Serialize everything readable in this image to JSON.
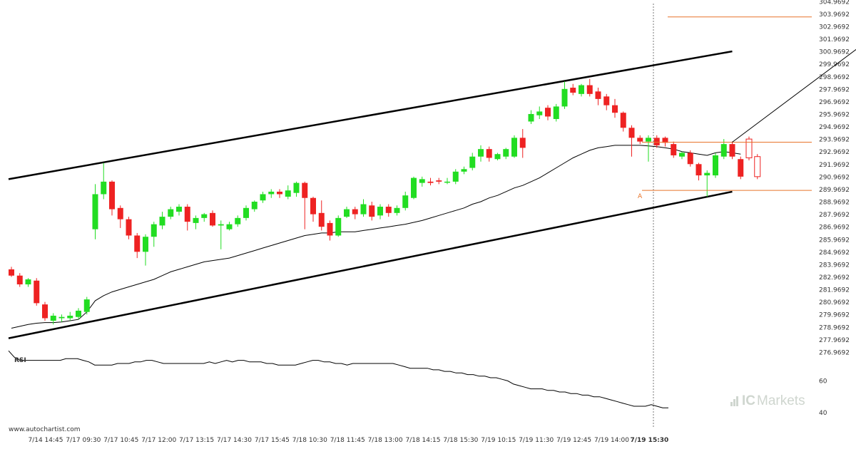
{
  "watermark": "www.autochartist.com",
  "brand": {
    "prefix": "IC",
    "name": "Markets",
    "color": "#cfd6cf"
  },
  "chart_data": {
    "type": "candlestick",
    "y_axis": {
      "range": [
        276.2,
        305.1
      ],
      "ticks": [
        "304.9692",
        "303.9692",
        "302.9692",
        "301.9692",
        "300.9692",
        "299.9692",
        "298.9692",
        "297.9692",
        "296.9692",
        "295.9692",
        "294.9692",
        "293.9692",
        "292.9692",
        "291.9692",
        "290.9692",
        "289.9692",
        "288.9692",
        "287.9692",
        "286.9692",
        "285.9692",
        "284.9692",
        "283.9692",
        "282.9692",
        "281.9692",
        "280.9692",
        "279.9692",
        "278.9692",
        "277.9692",
        "276.9692"
      ]
    },
    "x_axis": {
      "labels": [
        "7/14 14:45",
        "7/17 09:30",
        "7/17 10:45",
        "7/17 12:00",
        "7/17 13:15",
        "7/17 14:30",
        "7/17 15:45",
        "7/18 10:30",
        "7/18 11:45",
        "7/18 13:00",
        "7/18 14:15",
        "7/18 15:30",
        "7/19 10:15",
        "7/19 11:30",
        "7/19 12:45",
        "7/19 14:00",
        "7/19 15:30"
      ],
      "highlight": "7/19 15:30"
    },
    "colors": {
      "up": "#22dd22",
      "down": "#ee2222",
      "ma": "#000000",
      "channel": "#000000",
      "level": "#e8742a",
      "forecast": "#e8742a"
    },
    "candles": [
      [
        283.6,
        283.1,
        283.8,
        283.0
      ],
      [
        283.1,
        282.4,
        283.3,
        282.2
      ],
      [
        282.4,
        282.8,
        282.9,
        282.2
      ],
      [
        282.7,
        280.9,
        282.9,
        280.7
      ],
      [
        280.8,
        279.7,
        281.0,
        279.5
      ],
      [
        279.5,
        279.9,
        280.1,
        279.2
      ],
      [
        279.7,
        279.8,
        280.0,
        279.4
      ],
      [
        279.7,
        279.9,
        280.2,
        279.5
      ],
      [
        279.8,
        280.3,
        280.5,
        279.6
      ],
      [
        280.2,
        281.2,
        281.4,
        280.0
      ],
      [
        286.8,
        289.6,
        290.4,
        286.0
      ],
      [
        289.6,
        290.6,
        292.1,
        289.2
      ],
      [
        290.6,
        288.4,
        290.7,
        287.9
      ],
      [
        288.5,
        287.6,
        288.7,
        286.9
      ],
      [
        287.6,
        286.3,
        287.8,
        286.0
      ],
      [
        286.3,
        285.0,
        286.5,
        284.5
      ],
      [
        285.0,
        286.2,
        286.4,
        283.9
      ],
      [
        286.2,
        287.2,
        287.4,
        285.4
      ],
      [
        287.1,
        287.8,
        288.2,
        286.8
      ],
      [
        287.8,
        288.4,
        288.6,
        287.6
      ],
      [
        288.2,
        288.6,
        288.8,
        287.9
      ],
      [
        288.6,
        287.4,
        288.8,
        286.7
      ],
      [
        287.3,
        287.7,
        287.9,
        286.8
      ],
      [
        287.7,
        288.0,
        288.1,
        287.4
      ],
      [
        288.1,
        287.1,
        288.3,
        287.0
      ],
      [
        287.1,
        287.2,
        287.5,
        285.2
      ],
      [
        286.8,
        287.2,
        287.4,
        286.7
      ],
      [
        287.2,
        287.7,
        287.9,
        287.0
      ],
      [
        287.7,
        288.5,
        288.7,
        287.5
      ],
      [
        288.4,
        289.0,
        289.1,
        288.2
      ],
      [
        289.1,
        289.6,
        289.8,
        288.9
      ],
      [
        289.6,
        289.8,
        290.0,
        289.3
      ],
      [
        289.8,
        289.6,
        290.0,
        289.3
      ],
      [
        289.4,
        289.9,
        290.3,
        289.2
      ],
      [
        289.7,
        290.5,
        290.6,
        289.4
      ],
      [
        290.5,
        289.3,
        290.6,
        286.8
      ],
      [
        289.3,
        288.0,
        289.4,
        287.4
      ],
      [
        288.1,
        287.0,
        289.1,
        286.7
      ],
      [
        287.3,
        286.3,
        287.5,
        285.9
      ],
      [
        286.3,
        287.7,
        287.9,
        286.2
      ],
      [
        287.8,
        288.4,
        288.6,
        287.7
      ],
      [
        288.4,
        288.0,
        288.6,
        287.6
      ],
      [
        288.0,
        288.8,
        289.2,
        287.8
      ],
      [
        288.7,
        287.8,
        289.0,
        287.5
      ],
      [
        287.9,
        288.6,
        288.8,
        287.6
      ],
      [
        288.6,
        288.1,
        288.8,
        287.8
      ],
      [
        288.1,
        288.5,
        288.7,
        287.9
      ],
      [
        288.5,
        289.5,
        289.8,
        288.3
      ],
      [
        289.3,
        290.9,
        291.0,
        289.2
      ],
      [
        290.5,
        290.8,
        291.0,
        290.2
      ],
      [
        290.6,
        290.5,
        290.9,
        290.3
      ],
      [
        290.7,
        290.6,
        290.9,
        290.4
      ],
      [
        290.6,
        290.6,
        290.9,
        290.4
      ],
      [
        290.6,
        291.4,
        291.6,
        290.4
      ],
      [
        291.4,
        291.6,
        291.8,
        291.2
      ],
      [
        291.7,
        292.6,
        292.9,
        291.5
      ],
      [
        292.6,
        293.2,
        293.5,
        292.2
      ],
      [
        293.2,
        292.5,
        293.4,
        292.2
      ],
      [
        292.4,
        292.8,
        292.9,
        292.3
      ],
      [
        292.6,
        293.2,
        293.3,
        292.4
      ],
      [
        292.6,
        294.1,
        294.3,
        292.5
      ],
      [
        294.1,
        293.3,
        294.8,
        292.5
      ],
      [
        295.4,
        296.0,
        296.3,
        295.2
      ],
      [
        295.9,
        296.2,
        296.6,
        295.6
      ],
      [
        296.5,
        295.8,
        296.7,
        295.5
      ],
      [
        295.6,
        296.6,
        296.8,
        295.4
      ],
      [
        296.6,
        298.0,
        298.6,
        296.4
      ],
      [
        298.1,
        297.7,
        298.4,
        297.5
      ],
      [
        297.6,
        298.3,
        298.4,
        297.4
      ],
      [
        298.3,
        297.6,
        298.8,
        297.4
      ],
      [
        297.8,
        297.2,
        298.1,
        296.7
      ],
      [
        297.4,
        296.7,
        297.6,
        296.3
      ],
      [
        296.7,
        296.1,
        297.2,
        295.7
      ],
      [
        296.1,
        294.9,
        296.2,
        294.6
      ],
      [
        294.9,
        294.1,
        295.1,
        292.6
      ],
      [
        294.1,
        293.8,
        294.3,
        293.6
      ],
      [
        293.8,
        294.1,
        294.3,
        292.2
      ],
      [
        294.1,
        293.5,
        294.3,
        293.3
      ],
      [
        294.1,
        293.7,
        294.2,
        293.4
      ],
      [
        293.6,
        292.7,
        293.8,
        292.5
      ],
      [
        292.6,
        292.9,
        293.0,
        292.4
      ],
      [
        292.9,
        292.0,
        293.1,
        291.8
      ],
      [
        292.0,
        291.1,
        292.1,
        290.7
      ],
      [
        291.1,
        291.3,
        291.5,
        289.4
      ],
      [
        291.1,
        292.7,
        292.9,
        290.9
      ],
      [
        292.6,
        293.6,
        294.0,
        292.4
      ],
      [
        293.6,
        292.6,
        293.8,
        292.4
      ],
      [
        292.4,
        291.0,
        292.6,
        290.8
      ]
    ],
    "moving_average": [
      278.9,
      279.05,
      279.2,
      279.3,
      279.35,
      279.35,
      279.4,
      279.5,
      279.6,
      280.2,
      281.1,
      281.5,
      281.8,
      282.0,
      282.2,
      282.4,
      282.6,
      282.8,
      283.1,
      283.4,
      283.6,
      283.8,
      284.0,
      284.2,
      284.3,
      284.4,
      284.5,
      284.7,
      284.9,
      285.1,
      285.3,
      285.5,
      285.7,
      285.9,
      286.1,
      286.3,
      286.4,
      286.5,
      286.5,
      286.6,
      286.6,
      286.6,
      286.7,
      286.8,
      286.9,
      287.0,
      287.1,
      287.2,
      287.35,
      287.5,
      287.7,
      287.9,
      288.1,
      288.3,
      288.5,
      288.8,
      289.0,
      289.3,
      289.5,
      289.8,
      290.1,
      290.3,
      290.6,
      290.9,
      291.3,
      291.7,
      292.1,
      292.5,
      292.8,
      293.1,
      293.3,
      293.4,
      293.5,
      293.5,
      293.5,
      293.5,
      293.45,
      293.4,
      293.3,
      293.2,
      293.0,
      292.9,
      292.8,
      292.7,
      292.9,
      293.0,
      292.9,
      292.8
    ],
    "channel": {
      "upper": [
        [
          0,
          290.8
        ],
        [
          86,
          301.0
        ]
      ],
      "lower": [
        [
          0,
          278.1
        ],
        [
          86,
          289.8
        ]
      ]
    },
    "level_lines": [
      {
        "label": "A",
        "value": 289.9
      },
      {
        "value": 293.75
      }
    ],
    "target_line": {
      "value": 303.75
    },
    "forecast_arrow": {
      "from": [
        86,
        293.75
      ],
      "to": [
        106,
        303.6
      ]
    },
    "rsi": {
      "title": "RSI",
      "ticks": [
        "60",
        "40"
      ],
      "range": [
        35,
        80
      ],
      "values": [
        79,
        75,
        73,
        73,
        73,
        73,
        73,
        73,
        73,
        73,
        74,
        74,
        74,
        73,
        72,
        70,
        70,
        70,
        70,
        71,
        71,
        71,
        72,
        72,
        73,
        73,
        72,
        71,
        71,
        71,
        71,
        71,
        71,
        71,
        71,
        72,
        71,
        72,
        73,
        72,
        73,
        73,
        72,
        72,
        72,
        71,
        71,
        70,
        70,
        70,
        70,
        71,
        72,
        73,
        73,
        72,
        72,
        71,
        71,
        70,
        71,
        71,
        71,
        71,
        71,
        71,
        71,
        71,
        70,
        69,
        68,
        68,
        68,
        68,
        67,
        67,
        66,
        66,
        65,
        65,
        64,
        64,
        63,
        63,
        62,
        62,
        61,
        60,
        58,
        57,
        56,
        55,
        55,
        55,
        54,
        54,
        53,
        53,
        52,
        52,
        51,
        51,
        50,
        50,
        49,
        48,
        47,
        46,
        45,
        44,
        44,
        44,
        45,
        44,
        43,
        43
      ]
    }
  }
}
